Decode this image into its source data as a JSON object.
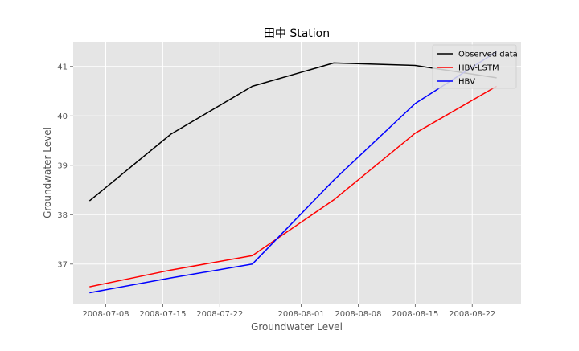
{
  "chart_data": {
    "type": "line",
    "title": "田中 Station",
    "xlabel": "Groundwater Level",
    "ylabel": "Groundwater Level",
    "x_type": "date",
    "xlim": [
      "2008-07-04",
      "2008-08-28"
    ],
    "ylim": [
      36.2,
      41.5
    ],
    "x_ticks": [
      "2008-07-08",
      "2008-07-15",
      "2008-07-22",
      "2008-08-01",
      "2008-08-08",
      "2008-08-15",
      "2008-08-22"
    ],
    "y_ticks": [
      37,
      38,
      39,
      40,
      41
    ],
    "grid": true,
    "legend_position": "top-right",
    "x": [
      "2008-07-06",
      "2008-07-16",
      "2008-07-26",
      "2008-08-05",
      "2008-08-15",
      "2008-08-25"
    ],
    "series": [
      {
        "name": "Observed data",
        "color": "#000000",
        "values": [
          38.28,
          39.63,
          40.6,
          41.07,
          41.02,
          40.77
        ]
      },
      {
        "name": "HBV-LSTM",
        "color": "#ff0000",
        "values": [
          36.54,
          36.88,
          37.17,
          38.3,
          39.65,
          40.6
        ]
      },
      {
        "name": "HBV",
        "color": "#0000ff",
        "values": [
          36.42,
          36.72,
          37.0,
          38.7,
          40.25,
          41.3
        ]
      }
    ]
  }
}
